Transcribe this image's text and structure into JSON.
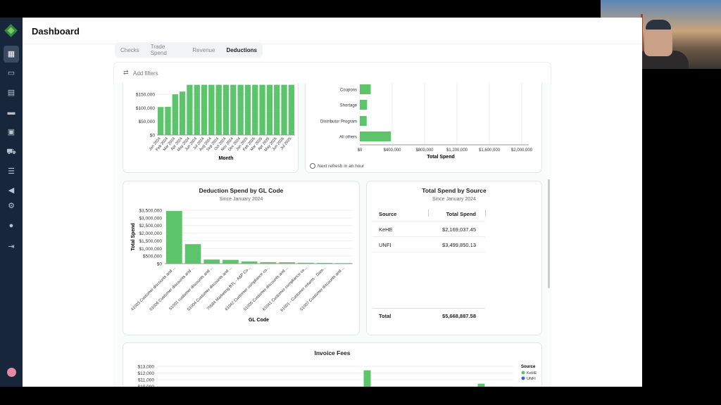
{
  "header": {
    "title": "Dashboard"
  },
  "tabs": [
    {
      "label": "Checks"
    },
    {
      "label": "Trade Spend"
    },
    {
      "label": "Revenue"
    },
    {
      "label": "Deductions",
      "active": true
    }
  ],
  "filters": {
    "label": "Add filters",
    "icon": "sliders-icon"
  },
  "sidebar": {
    "items": [
      "dashboard-icon",
      "checks-icon",
      "invoice-icon",
      "card-icon",
      "calendar-icon",
      "truck-icon",
      "list-icon",
      "megaphone-icon",
      "gear-icon",
      "user-icon",
      "logout-icon"
    ]
  },
  "colors": {
    "bar": "#5cc46a",
    "kehe": "#5cc46a",
    "unfi": "#3a68c9",
    "sidebar": "#17263a"
  },
  "refresh": {
    "label": "Next refresh in an hour"
  },
  "chart_data": [
    {
      "type": "bar",
      "xlabel": "Month",
      "ylabel": "",
      "categories": [
        "Jan 2024",
        "Feb 2024",
        "Mar 2024",
        "Apr 2024",
        "May 2024",
        "Jun 2024",
        "Jul 2024",
        "Aug 2024",
        "Sep 2024",
        "Oct 2024",
        "Nov 2024",
        "Dec 2024",
        "Jan 2025",
        "Feb 2025",
        "Mar 2025",
        "Apr 2025",
        "May 2025",
        "Jun 2025",
        "Jul 2025"
      ],
      "values": [
        103000,
        104000,
        150000,
        160000,
        185000,
        185000,
        185000,
        185000,
        185000,
        185000,
        185000,
        185000,
        185000,
        185000,
        185000,
        185000,
        185000,
        185000,
        185000
      ],
      "yticks": [
        "$0",
        "$50,000",
        "$100,000",
        "$150,000"
      ],
      "ytick_values": [
        0,
        50000,
        100000,
        150000
      ]
    },
    {
      "type": "bar",
      "orientation": "horizontal",
      "xlabel": "Total Spend",
      "categories": [
        "Coupons",
        "Shortage",
        "Distributor Program",
        "All others"
      ],
      "values": [
        135000,
        90000,
        85000,
        385000
      ],
      "xticks": [
        "$0",
        "$400,000",
        "$800,000",
        "$1,200,000",
        "$1,600,000",
        "$2,000,000"
      ],
      "xtick_values": [
        0,
        400000,
        800000,
        1200000,
        1600000,
        2000000
      ]
    },
    {
      "type": "bar",
      "title": "Deduction Spend by GL Code",
      "subtitle": "Since January 2024",
      "xlabel": "GL Code",
      "ylabel": "Total Spend",
      "categories": [
        "41003 Customer discounts and ...",
        "51006 Customer discounts and ...",
        "51001 customer discounts and ...",
        "51004 Customer discounts and ...",
        "70584 Marketing BTL - A&P Co...",
        "61042 Customer compliance co...",
        "51005 Customer discounts and ...",
        "61041 Customer compliance co...",
        "61001 - Customer returns - Dam...",
        "51007 Customer discounts and ..."
      ],
      "values": [
        3450000,
        1280000,
        270000,
        250000,
        150000,
        100000,
        90000,
        60000,
        50000,
        10000
      ],
      "yticks": [
        "$0",
        "$500,000",
        "$1,000,000",
        "$1,500,000",
        "$2,000,000",
        "$2,500,000",
        "$3,000,000",
        "$3,500,000"
      ],
      "ytick_values": [
        0,
        500000,
        1000000,
        1500000,
        2000000,
        2500000,
        3000000,
        3500000
      ]
    },
    {
      "type": "table",
      "title": "Total Spend by Source",
      "subtitle": "Since January 2024",
      "columns": [
        "Source",
        "Total Spend"
      ],
      "rows": [
        [
          "KeHE",
          "$2,169,037.45"
        ],
        [
          "UNFI",
          "$3,499,850.13"
        ]
      ],
      "total": [
        "Total",
        "$5,668,887.58"
      ]
    },
    {
      "type": "bar",
      "title": "Invoice Fees",
      "legend_title": "Source",
      "legend": [
        "KeHE",
        "UNFI"
      ],
      "legend_placement": "right",
      "yticks": [
        "$10,000",
        "$11,000",
        "$12,000",
        "$13,000"
      ],
      "ytick_values": [
        10000,
        11000,
        12000,
        13000
      ],
      "series": [
        {
          "name": "KeHE",
          "points": [
            {
              "position": 0.59,
              "value": 12400
            },
            {
              "position": 0.91,
              "value": 10400
            }
          ]
        }
      ]
    }
  ]
}
